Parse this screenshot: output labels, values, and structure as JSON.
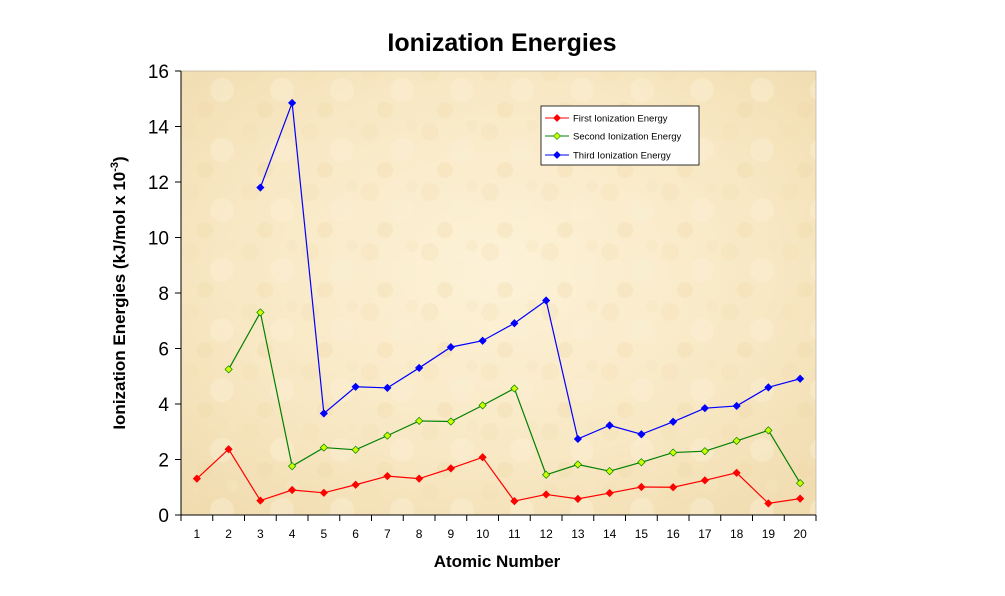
{
  "chart_data": {
    "type": "line",
    "title": "Ionization Energies",
    "xlabel": "Atomic Number",
    "ylabel_main": "Ionization Energies (kJ/mol x 10",
    "ylabel_sup": "-3",
    "ylabel_close": ")",
    "xlim": [
      0.5,
      20.5
    ],
    "ylim": [
      0,
      16
    ],
    "y_ticks": [
      0,
      2,
      4,
      6,
      8,
      10,
      12,
      14,
      16
    ],
    "categories": [
      1,
      2,
      3,
      4,
      5,
      6,
      7,
      8,
      9,
      10,
      11,
      12,
      13,
      14,
      15,
      16,
      17,
      18,
      19,
      20
    ],
    "legend_position": "top-right",
    "grid": false,
    "series": [
      {
        "name": "First Ionization Energy",
        "color": "#ff0000",
        "marker_fill": "#ff0000",
        "x": [
          1,
          2,
          3,
          4,
          5,
          6,
          7,
          8,
          9,
          10,
          11,
          12,
          13,
          14,
          15,
          16,
          17,
          18,
          19,
          20
        ],
        "values": [
          1.31,
          2.37,
          0.52,
          0.9,
          0.8,
          1.09,
          1.4,
          1.31,
          1.68,
          2.08,
          0.5,
          0.74,
          0.58,
          0.79,
          1.01,
          1.0,
          1.25,
          1.52,
          0.42,
          0.59
        ]
      },
      {
        "name": "Second Ionization Energy",
        "color": "#008000",
        "marker_fill": "#ccff00",
        "x": [
          2,
          3,
          4,
          5,
          6,
          7,
          8,
          9,
          10,
          11,
          12,
          13,
          14,
          15,
          16,
          17,
          18,
          19,
          20
        ],
        "values": [
          5.25,
          7.3,
          1.76,
          2.43,
          2.35,
          2.86,
          3.39,
          3.37,
          3.95,
          4.56,
          1.45,
          1.82,
          1.58,
          1.9,
          2.25,
          2.3,
          2.67,
          3.05,
          1.15
        ]
      },
      {
        "name": "Third Ionization Energy",
        "color": "#0000ff",
        "marker_fill": "#0000ff",
        "x": [
          3,
          4,
          5,
          6,
          7,
          8,
          9,
          10,
          11,
          12,
          13,
          14,
          15,
          16,
          17,
          18,
          19,
          20
        ],
        "values": [
          11.8,
          14.85,
          3.66,
          4.62,
          4.58,
          5.3,
          6.05,
          6.28,
          6.91,
          7.73,
          2.74,
          3.23,
          2.91,
          3.36,
          3.85,
          3.93,
          4.6,
          4.91
        ]
      }
    ]
  }
}
